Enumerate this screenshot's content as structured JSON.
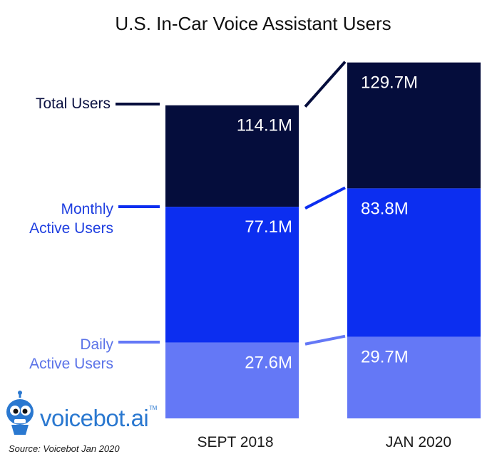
{
  "chart_data": {
    "type": "bar",
    "stacked": true,
    "title": "U.S. In-Car Voice Assistant Users",
    "categories": [
      "SEPT 2018",
      "JAN 2020"
    ],
    "series": [
      {
        "name": "Total Users",
        "color": "#050d3c",
        "values": [
          114.1,
          129.7
        ],
        "labels": [
          "114.1M",
          "129.7M"
        ]
      },
      {
        "name": "Monthly Active Users",
        "color": "#0c2ef0",
        "values": [
          77.1,
          83.8
        ],
        "labels": [
          "77.1M",
          "83.8M"
        ]
      },
      {
        "name": "Daily Active Users",
        "color": "#6478f6",
        "values": [
          27.6,
          29.7
        ],
        "labels": [
          "27.6M",
          "29.7M"
        ]
      }
    ],
    "row_labels": {
      "total": [
        "Total Users"
      ],
      "monthly": [
        "Monthly",
        "Active Users"
      ],
      "daily": [
        "Daily",
        "Active Users"
      ]
    }
  },
  "branding": {
    "logo_text": "voicebot.ai",
    "trademark": "TM",
    "logo_icon": "robot-mascot-icon",
    "source": "Source: Voicebot Jan 2020"
  }
}
